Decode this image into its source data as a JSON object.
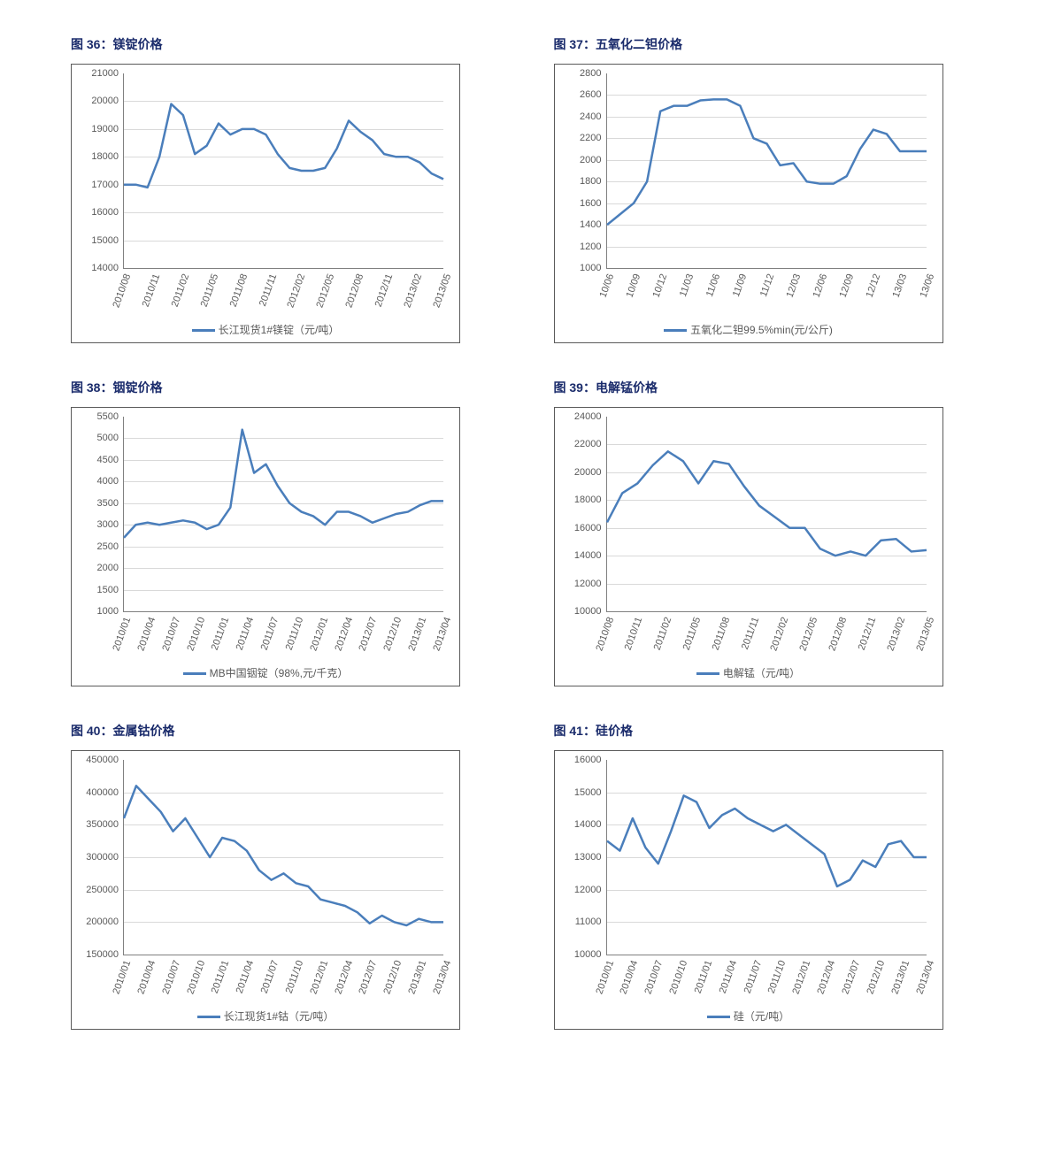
{
  "colors": {
    "title": "#1a2b6b",
    "line": "#4a7ebb",
    "grid": "#d9d9d9",
    "axis": "#808080",
    "text": "#595959",
    "frame": "#5a5a5a",
    "background": "#ffffff"
  },
  "line_width": 2.5,
  "label_fontsize": 11,
  "title_fontsize": 14,
  "charts": [
    {
      "id": "c36",
      "title": "图 36：镁锭价格",
      "type": "line",
      "legend": "长江现货1#镁锭（元/吨）",
      "ylim": [
        14000,
        21000
      ],
      "ytick_step": 1000,
      "x_labels": [
        "2010/08",
        "2010/11",
        "2011/02",
        "2011/05",
        "2011/08",
        "2011/11",
        "2012/02",
        "2012/05",
        "2012/08",
        "2012/11",
        "2013/02",
        "2013/05"
      ],
      "values": [
        17000,
        17000,
        16900,
        18000,
        19900,
        19500,
        18100,
        18400,
        19200,
        18800,
        19000,
        19000,
        18800,
        18100,
        17600,
        17500,
        17500,
        17600,
        18300,
        19300,
        18900,
        18600,
        18100,
        18000,
        18000,
        17800,
        17400,
        17200
      ]
    },
    {
      "id": "c37",
      "title": "图 37：五氧化二钽价格",
      "type": "line",
      "legend": "五氧化二钽99.5%min(元/公斤)",
      "ylim": [
        1000,
        2800
      ],
      "ytick_step": 200,
      "x_labels": [
        "10/06",
        "10/09",
        "10/12",
        "11/03",
        "11/06",
        "11/09",
        "11/12",
        "12/03",
        "12/06",
        "12/09",
        "12/12",
        "13/03",
        "13/06"
      ],
      "values": [
        1400,
        1500,
        1600,
        1800,
        2450,
        2500,
        2500,
        2550,
        2560,
        2560,
        2500,
        2200,
        2150,
        1950,
        1970,
        1800,
        1780,
        1780,
        1850,
        2100,
        2280,
        2240,
        2080,
        2080,
        2080
      ]
    },
    {
      "id": "c38",
      "title": "图 38：铟锭价格",
      "type": "line",
      "legend": "MB中国铟锭（98%,元/千克）",
      "ylim": [
        1000,
        5500
      ],
      "ytick_step": 500,
      "x_labels": [
        "2010/01",
        "2010/04",
        "2010/07",
        "2010/10",
        "2011/01",
        "2011/04",
        "2011/07",
        "2011/10",
        "2012/01",
        "2012/04",
        "2012/07",
        "2012/10",
        "2013/01",
        "2013/04"
      ],
      "values": [
        2700,
        3000,
        3050,
        3000,
        3050,
        3100,
        3050,
        2900,
        3000,
        3400,
        5200,
        4200,
        4400,
        3900,
        3500,
        3300,
        3200,
        3000,
        3300,
        3300,
        3200,
        3050,
        3150,
        3250,
        3300,
        3450,
        3550,
        3550
      ]
    },
    {
      "id": "c39",
      "title": "图 39：电解锰价格",
      "type": "line",
      "legend": "电解锰（元/吨）",
      "ylim": [
        10000,
        24000
      ],
      "ytick_step": 2000,
      "x_labels": [
        "2010/08",
        "2010/11",
        "2011/02",
        "2011/05",
        "2011/08",
        "2011/11",
        "2012/02",
        "2012/05",
        "2012/08",
        "2012/11",
        "2013/02",
        "2013/05"
      ],
      "values": [
        16400,
        18500,
        19200,
        20500,
        21500,
        20800,
        19200,
        20800,
        20600,
        19000,
        17600,
        16800,
        16000,
        16000,
        14500,
        14000,
        14300,
        14000,
        15100,
        15200,
        14300,
        14400
      ]
    },
    {
      "id": "c40",
      "title": "图 40：金属钴价格",
      "type": "line",
      "legend": "长江现货1#钴（元/吨）",
      "ylim": [
        150000,
        450000
      ],
      "ytick_step": 50000,
      "x_labels": [
        "2010/01",
        "2010/04",
        "2010/07",
        "2010/10",
        "2011/01",
        "2011/04",
        "2011/07",
        "2011/10",
        "2012/01",
        "2012/04",
        "2012/07",
        "2012/10",
        "2013/01",
        "2013/04"
      ],
      "values": [
        360000,
        410000,
        390000,
        370000,
        340000,
        360000,
        330000,
        300000,
        330000,
        325000,
        310000,
        280000,
        265000,
        275000,
        260000,
        255000,
        235000,
        230000,
        225000,
        215000,
        198000,
        210000,
        200000,
        195000,
        205000,
        200000,
        200000
      ]
    },
    {
      "id": "c41",
      "title": "图 41：硅价格",
      "type": "line",
      "legend": "硅（元/吨）",
      "ylim": [
        10000,
        16000
      ],
      "ytick_step": 1000,
      "x_labels": [
        "2010/01",
        "2010/04",
        "2010/07",
        "2010/10",
        "2011/01",
        "2011/04",
        "2011/07",
        "2011/10",
        "2012/01",
        "2012/04",
        "2012/07",
        "2012/10",
        "2013/01",
        "2013/04"
      ],
      "values": [
        13500,
        13200,
        14200,
        13300,
        12800,
        13800,
        14900,
        14700,
        13900,
        14300,
        14500,
        14200,
        14000,
        13800,
        14000,
        13700,
        13400,
        13100,
        12100,
        12300,
        12900,
        12700,
        13400,
        13500,
        13000,
        13000
      ]
    }
  ]
}
